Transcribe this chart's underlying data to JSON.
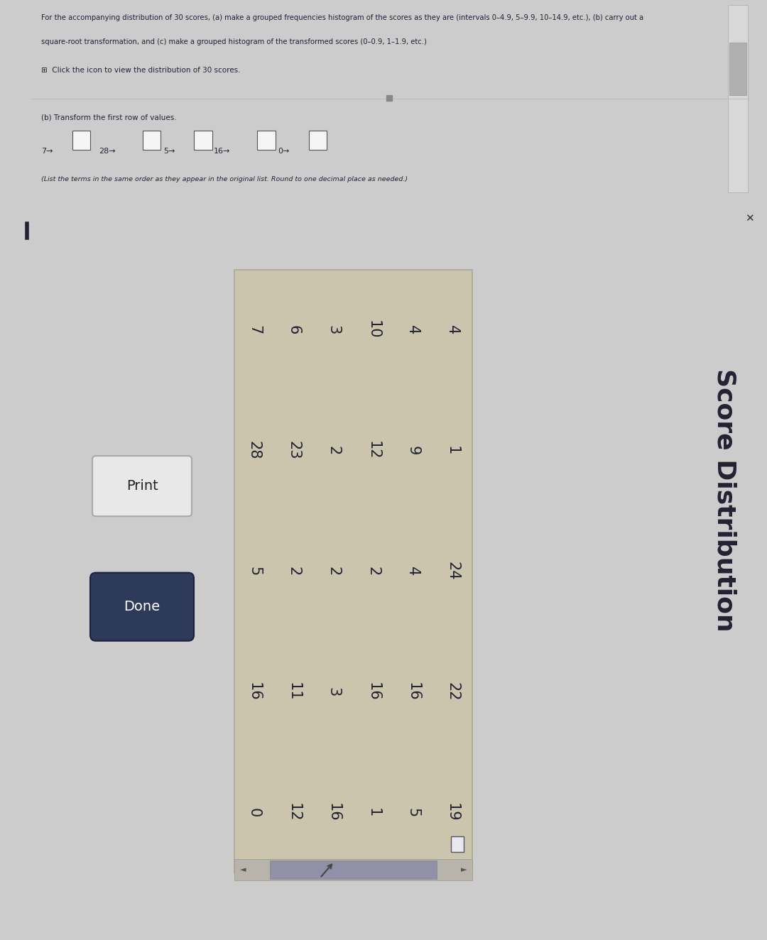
{
  "top_line1": "For the accompanying distribution of 30 scores, (a) make a grouped frequencies histogram of the scores as they are (intervals 0–4.9, 5–9.9, 10–14.9, etc.), (b) carry out a",
  "top_line2": "square-root transformation, and (c) make a grouped histogram of the transformed scores (0–0.9, 1–1.9, etc.)",
  "icon_line": "⊞  Click the icon to view the distribution of 30 scores.",
  "part_b_label": "(b) Transform the first row of values.",
  "note_line": "(List the terms in the same order as they appear in the original list. Round to one decimal place as needed.)",
  "dialog_title": "Score Distribution",
  "rotated_rows": [
    [
      7,
      6,
      3,
      10,
      4,
      4
    ],
    [
      28,
      23,
      2,
      12,
      9,
      1
    ],
    [
      5,
      2,
      2,
      2,
      4,
      24
    ],
    [
      16,
      11,
      3,
      16,
      16,
      22
    ],
    [
      0,
      12,
      16,
      1,
      5,
      19
    ]
  ],
  "bg_page": "#cccccc",
  "bg_top": "#f0f0f0",
  "bg_dialog": "#8090a0",
  "bg_table": "#ccc5ae",
  "text_dark": "#222233",
  "text_white": "#ffffff",
  "print_btn_fill": "#e8e8e8",
  "print_btn_border": "#aaaaaa",
  "done_btn_fill": "#2e3a5a",
  "scrollbar_bg": "#b8b4ac",
  "scrollbar_thumb": "#9090a8"
}
